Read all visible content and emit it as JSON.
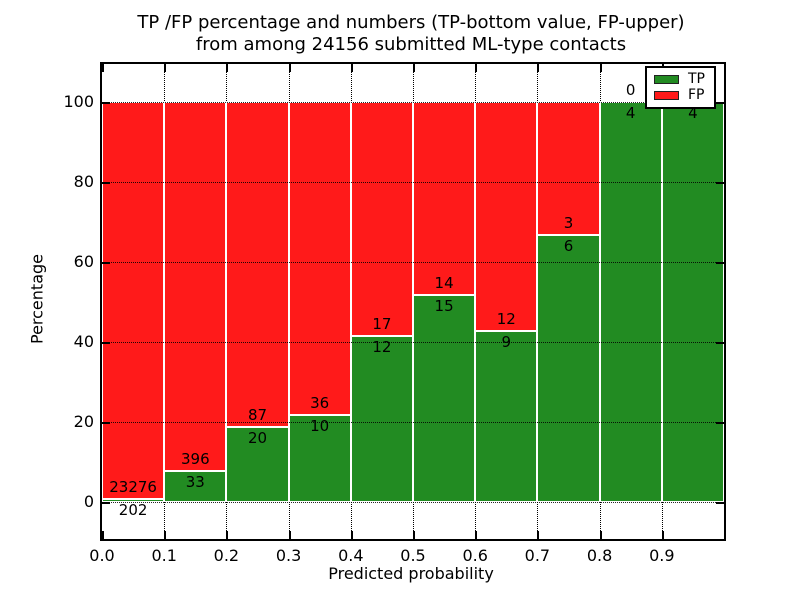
{
  "figure": {
    "title_line1": "TP /FP percentage and numbers (TP-bottom value, FP-upper)",
    "title_line2": "from among 24156 submitted ML-type contacts"
  },
  "axes": {
    "xlabel": "Predicted probability",
    "ylabel": "Percentage",
    "xtick_labels": [
      "0.0",
      "0.1",
      "0.2",
      "0.3",
      "0.4",
      "0.5",
      "0.6",
      "0.7",
      "0.8",
      "0.9"
    ],
    "xtick_values": [
      0.0,
      0.1,
      0.2,
      0.3,
      0.4,
      0.5,
      0.6,
      0.7,
      0.8,
      0.9
    ],
    "ytick_labels": [
      "0",
      "20",
      "40",
      "60",
      "80",
      "100"
    ],
    "ytick_values": [
      0,
      20,
      40,
      60,
      80,
      100
    ],
    "xlim": [
      0.0,
      1.0
    ],
    "ylim": [
      -10,
      110
    ],
    "grid": "dotted"
  },
  "legend": {
    "position": "upper right",
    "items": [
      {
        "label": "TP",
        "color": "#228B22"
      },
      {
        "label": "FP",
        "color": "#FF1A1A"
      }
    ]
  },
  "colors": {
    "tp": "#228B22",
    "fp": "#FF1A1A",
    "bar_edge": "#FFFFFF",
    "grid": "#000000",
    "background": "#FFFFFF",
    "text": "#000000"
  },
  "chart_data": {
    "type": "bar",
    "stacked": true,
    "normalized": "each bin scaled to 100%",
    "title": "TP /FP percentage and numbers (TP-bottom value, FP-upper) from among 24156 submitted ML-type contacts",
    "xlabel": "Predicted probability",
    "ylabel": "Percentage",
    "total_submitted": 24156,
    "categories": [
      "0.0-0.1",
      "0.1-0.2",
      "0.2-0.3",
      "0.3-0.4",
      "0.4-0.5",
      "0.5-0.6",
      "0.6-0.7",
      "0.7-0.8",
      "0.8-0.9",
      "0.9-1.0"
    ],
    "bin_starts": [
      0.0,
      0.1,
      0.2,
      0.3,
      0.4,
      0.5,
      0.6,
      0.7,
      0.8,
      0.9
    ],
    "bin_width": 0.1,
    "series": [
      {
        "name": "TP",
        "counts": [
          202,
          33,
          20,
          10,
          12,
          15,
          9,
          6,
          4,
          4
        ]
      },
      {
        "name": "FP",
        "counts": [
          23276,
          396,
          87,
          36,
          17,
          14,
          12,
          3,
          0,
          0
        ]
      }
    ],
    "tp_percent": [
      0.86,
      7.69,
      18.69,
      21.74,
      41.38,
      51.72,
      42.86,
      66.67,
      100.0,
      100.0
    ],
    "ylim": [
      -10,
      110
    ],
    "legend_position": "upper right",
    "annotation_rule": "TP count printed below green/red boundary, FP count printed above it"
  }
}
